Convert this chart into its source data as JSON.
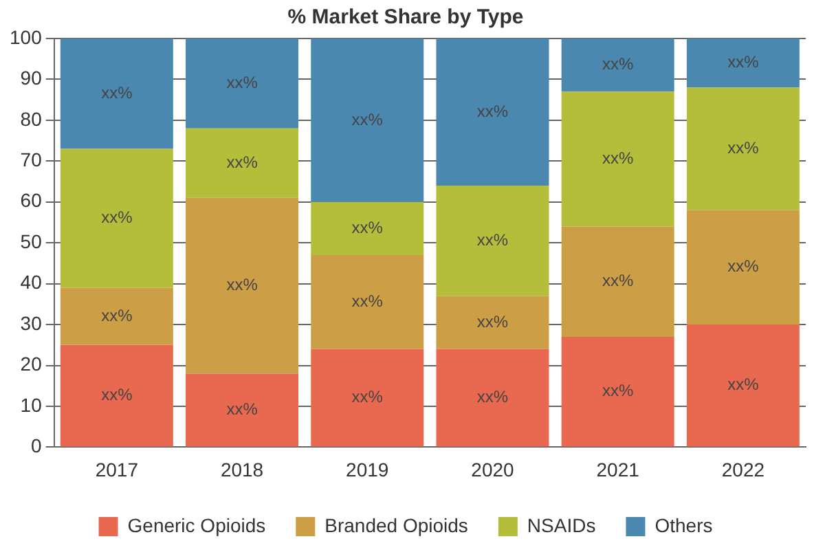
{
  "chart_data": {
    "type": "bar",
    "title": "% Market Share by Type",
    "stacked": true,
    "categories": [
      "2017",
      "2018",
      "2019",
      "2020",
      "2021",
      "2022"
    ],
    "series": [
      {
        "name": "Generic Opioids",
        "color": "#e8694f",
        "values": [
          25,
          18,
          24,
          24,
          27,
          30
        ],
        "value_labels": [
          "xx%",
          "xx%",
          "xx%",
          "xx%",
          "xx%",
          "xx%"
        ]
      },
      {
        "name": "Branded Opioids",
        "color": "#cc9e45",
        "values": [
          14,
          43,
          23,
          13,
          27,
          28
        ],
        "value_labels": [
          "xx%",
          "xx%",
          "xx%",
          "xx%",
          "xx%",
          "xx%"
        ]
      },
      {
        "name": "NSAIDs",
        "color": "#b5be3a",
        "values": [
          34,
          17,
          13,
          27,
          33,
          30
        ],
        "value_labels": [
          "xx%",
          "xx%",
          "xx%",
          "xx%",
          "xx%",
          "xx%"
        ]
      },
      {
        "name": "Others",
        "color": "#4a88b0",
        "values": [
          27,
          22,
          40,
          36,
          13,
          12
        ],
        "value_labels": [
          "xx%",
          "xx%",
          "xx%",
          "xx%",
          "xx%",
          "xx%"
        ]
      }
    ],
    "ylim": [
      0,
      100
    ],
    "yticks": [
      0,
      10,
      20,
      30,
      40,
      50,
      60,
      70,
      80,
      90,
      100
    ],
    "grid": "y",
    "legend": "bottom"
  }
}
